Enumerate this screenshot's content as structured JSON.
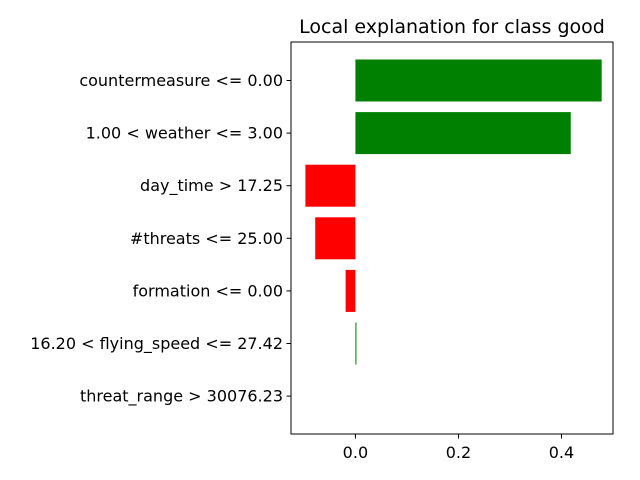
{
  "chart_data": {
    "type": "bar",
    "orientation": "horizontal",
    "title": "Local explanation for class good",
    "xlabel": "",
    "ylabel": "",
    "xlim": [
      -0.125,
      0.5
    ],
    "xticks": [
      0.0,
      0.2,
      0.4
    ],
    "xtick_labels": [
      "0.0",
      "0.2",
      "0.4"
    ],
    "grid": false,
    "legend": "none",
    "categories": [
      "countermeasure <= 0.00",
      "1.00 < weather <= 3.00",
      "day_time > 17.25",
      "#threats <= 25.00",
      "formation <= 0.00",
      "16.20 < flying_speed <= 27.42",
      "threat_range > 30076.23"
    ],
    "values": [
      0.478,
      0.418,
      -0.097,
      -0.078,
      -0.019,
      0.002,
      0.0
    ],
    "colors": {
      "positive": "#008000",
      "negative": "#ff0000"
    }
  }
}
